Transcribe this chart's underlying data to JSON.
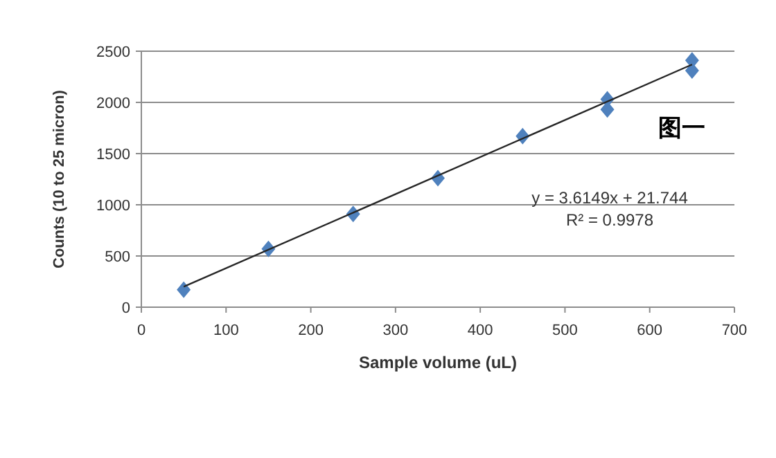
{
  "chart_data": {
    "type": "scatter",
    "xlabel": "Sample volume (uL)",
    "ylabel": "Counts (10 to 25 micron)",
    "xlim": [
      0,
      700
    ],
    "xticks": [
      0,
      100,
      200,
      300,
      400,
      500,
      600,
      700
    ],
    "ylim": [
      0,
      2500
    ],
    "yticks": [
      0,
      500,
      1000,
      1500,
      2000,
      2500
    ],
    "grid": "y",
    "marker": "diamond",
    "series": [
      {
        "color": "#4f81bd",
        "x": [
          50,
          150,
          250,
          350,
          450,
          550,
          550,
          650,
          650
        ],
        "values": [
          170,
          570,
          910,
          1260,
          1670,
          1930,
          2030,
          2310,
          2410
        ]
      },
      {
        "type": "line",
        "color": "#262626",
        "marker": "none",
        "x": [
          50,
          650
        ],
        "values": [
          200,
          2370
        ]
      }
    ],
    "annotations": [
      "图一",
      "y = 3.6149x + 21.744",
      "R² = 0.9978"
    ]
  }
}
